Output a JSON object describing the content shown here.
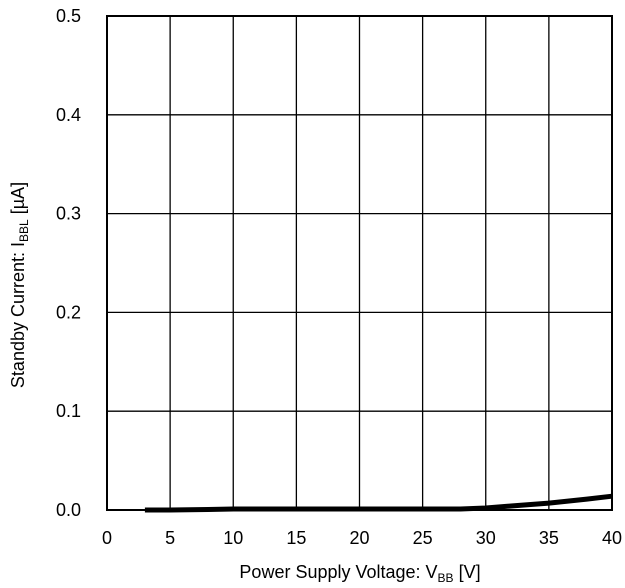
{
  "chart_data": {
    "type": "line",
    "xlabel": {
      "main": "Power Supply Voltage: V",
      "sub": "BB",
      "suffix": " [V]"
    },
    "ylabel": {
      "main": "Standby Current: I",
      "sub": "BBL",
      "suffix": " [µA]"
    },
    "xlim": [
      0,
      40
    ],
    "ylim": [
      0,
      0.5
    ],
    "x_ticks": [
      0,
      5,
      10,
      15,
      20,
      25,
      30,
      35,
      40
    ],
    "x_tick_labels": [
      "0",
      "5",
      "10",
      "15",
      "20",
      "25",
      "30",
      "35",
      "40"
    ],
    "y_ticks": [
      0,
      0.1,
      0.2,
      0.3,
      0.4,
      0.5
    ],
    "y_tick_labels": [
      "0.0",
      "0.1",
      "0.2",
      "0.3",
      "0.4",
      "0.5"
    ],
    "grid": true,
    "series": [
      {
        "x": [
          3,
          5,
          8,
          10,
          12,
          15,
          20,
          25,
          28,
          30,
          32,
          35,
          38,
          40
        ],
        "y": [
          0.0,
          0.0,
          0.0005,
          0.001,
          0.001,
          0.001,
          0.001,
          0.001,
          0.001,
          0.002,
          0.004,
          0.007,
          0.011,
          0.014
        ],
        "color": "#000000"
      }
    ]
  }
}
